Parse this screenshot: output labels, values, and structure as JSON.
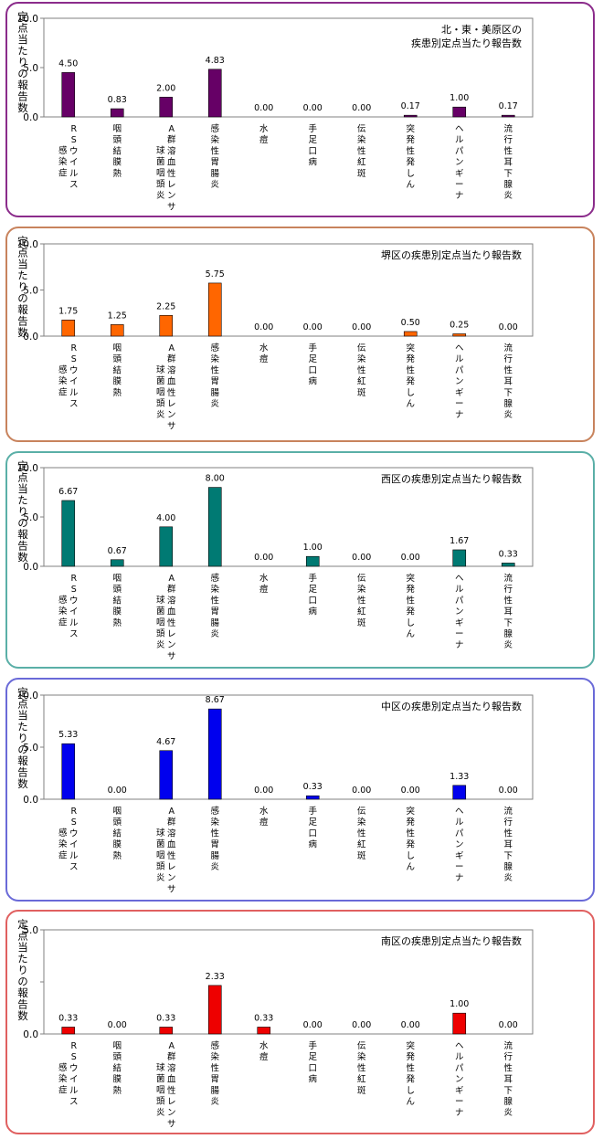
{
  "ylabel": "定点当たりの報告数",
  "categories": [
    [
      "RSウイルス",
      "感染症"
    ],
    [
      "咽頭結膜熱"
    ],
    [
      "A群溶血性レンサ",
      "球菌咽頭炎"
    ],
    [
      "感染性胃腸炎"
    ],
    [
      "水痘"
    ],
    [
      "手足口病"
    ],
    [
      "伝染性紅斑"
    ],
    [
      "突発性発しん"
    ],
    [
      "ヘルパンギーナ"
    ],
    [
      "流行性耳下腺炎"
    ]
  ],
  "chart_data": [
    {
      "type": "bar",
      "title": [
        "北・東・美原区の",
        "疾患別定点当たり報告数"
      ],
      "color": "#660066",
      "border_color": "#8b2c8b",
      "ylim": [
        0,
        10
      ],
      "yticks": [
        "10.0",
        "5.0",
        "0.0"
      ],
      "values": [
        4.5,
        0.83,
        2.0,
        4.83,
        0.0,
        0.0,
        0.0,
        0.17,
        1.0,
        0.17
      ],
      "labels": [
        "4.50",
        "0.83",
        "2.00",
        "4.83",
        "0.00",
        "0.00",
        "0.00",
        "0.17",
        "1.00",
        "0.17"
      ]
    },
    {
      "type": "bar",
      "title": [
        "堺区の疾患別定点当たり報告数"
      ],
      "color": "#ff6600",
      "border_color": "#c8835d",
      "ylim": [
        0,
        10
      ],
      "yticks": [
        "10.0",
        "5.0",
        "0.0"
      ],
      "values": [
        1.75,
        1.25,
        2.25,
        5.75,
        0.0,
        0.0,
        0.0,
        0.5,
        0.25,
        0.0
      ],
      "labels": [
        "1.75",
        "1.25",
        "2.25",
        "5.75",
        "0.00",
        "0.00",
        "0.00",
        "0.50",
        "0.25",
        "0.00"
      ]
    },
    {
      "type": "bar",
      "title": [
        "西区の疾患別定点当たり報告数"
      ],
      "color": "#007a73",
      "border_color": "#5aafa7",
      "ylim": [
        0,
        10
      ],
      "yticks": [
        "10.0",
        "5.0",
        "0.0"
      ],
      "values": [
        6.67,
        0.67,
        4.0,
        8.0,
        0.0,
        1.0,
        0.0,
        0.0,
        1.67,
        0.33
      ],
      "labels": [
        "6.67",
        "0.67",
        "4.00",
        "8.00",
        "0.00",
        "1.00",
        "0.00",
        "0.00",
        "1.67",
        "0.33"
      ]
    },
    {
      "type": "bar",
      "title": [
        "中区の疾患別定点当たり報告数"
      ],
      "color": "#0000ee",
      "border_color": "#6a6ad8",
      "ylim": [
        0,
        10
      ],
      "yticks": [
        "10.0",
        "5.0",
        "0.0"
      ],
      "values": [
        5.33,
        0.0,
        4.67,
        8.67,
        0.0,
        0.33,
        0.0,
        0.0,
        1.33,
        0.0
      ],
      "labels": [
        "5.33",
        "0.00",
        "4.67",
        "8.67",
        "0.00",
        "0.33",
        "0.00",
        "0.00",
        "1.33",
        "0.00"
      ]
    },
    {
      "type": "bar",
      "title": [
        "南区の疾患別定点当たり報告数"
      ],
      "color": "#ee0000",
      "border_color": "#e06060",
      "ylim": [
        0,
        5
      ],
      "yticks": [
        "5.0",
        "",
        "0.0"
      ],
      "values": [
        0.33,
        0.0,
        0.33,
        2.33,
        0.33,
        0.0,
        0.0,
        0.0,
        1.0,
        0.0
      ],
      "labels": [
        "0.33",
        "0.00",
        "0.33",
        "2.33",
        "0.33",
        "0.00",
        "0.00",
        "0.00",
        "1.00",
        "0.00"
      ]
    }
  ]
}
